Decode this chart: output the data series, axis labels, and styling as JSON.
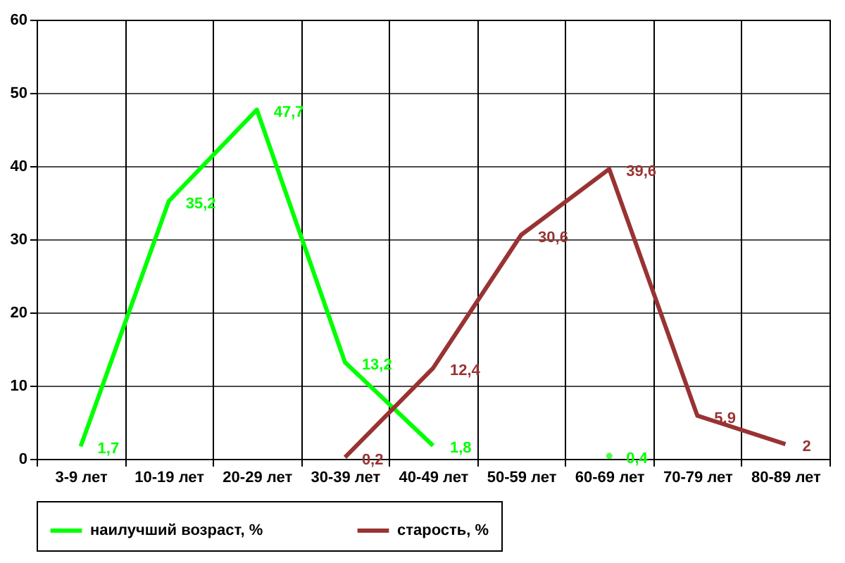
{
  "chart_data": {
    "type": "line",
    "categories": [
      "3-9  лет",
      "10-19 лет",
      "20-29 лет",
      "30-39 лет",
      "40-49 лет",
      "50-59 лет",
      "60-69 лет",
      "70-79 лет",
      "80-89 лет"
    ],
    "series": [
      {
        "name": "наилучший возраст, %",
        "color": "#00ff00",
        "values": [
          1.7,
          35.2,
          47.7,
          13.2,
          1.8,
          null,
          0.4,
          null,
          null
        ],
        "value_labels": [
          "1,7",
          "35,2",
          "47,7",
          "13,2",
          "1,8",
          null,
          "0,4",
          null,
          null
        ]
      },
      {
        "name": "старость, %",
        "color": "#993333",
        "values": [
          null,
          null,
          null,
          0.2,
          12.4,
          30.6,
          39.6,
          5.9,
          2
        ],
        "value_labels": [
          null,
          null,
          null,
          "0,2",
          "12,4",
          "30,6",
          "39,6",
          "5,9",
          "2"
        ]
      }
    ],
    "ylim": [
      0,
      60
    ],
    "yticks": [
      0,
      10,
      20,
      30,
      40,
      50,
      60
    ],
    "grid": true,
    "legend": "bottom",
    "marker": "none",
    "line_style": "solid"
  }
}
